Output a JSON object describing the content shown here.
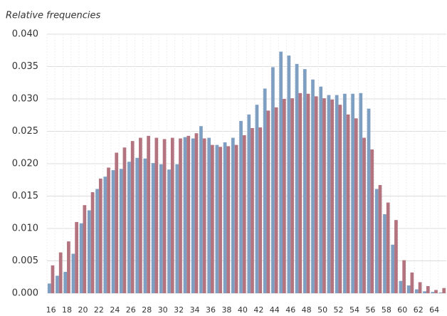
{
  "chart_data": {
    "type": "bar",
    "y_label": "Relative frequencies",
    "categories": [
      "16",
      null,
      "18",
      null,
      "20",
      null,
      "22",
      null,
      "24",
      null,
      "26",
      null,
      "28",
      null,
      "30",
      null,
      "32",
      null,
      "34",
      null,
      "36",
      null,
      "38",
      null,
      "40",
      null,
      "42",
      null,
      "44",
      null,
      "46",
      null,
      "48",
      null,
      "50",
      null,
      "52",
      null,
      "54",
      null,
      "56",
      null,
      "58",
      null,
      "60",
      null,
      "62",
      null,
      "64",
      null
    ],
    "series": [
      {
        "color": "#7f9fc2",
        "values": [
          0.0015,
          0.0027,
          0.0033,
          0.0061,
          0.0108,
          0.0128,
          0.0161,
          0.018,
          0.019,
          0.0192,
          0.0203,
          0.0209,
          0.0208,
          0.0201,
          0.0199,
          0.0191,
          0.0199,
          0.0241,
          0.0239,
          0.0258,
          0.024,
          0.0229,
          0.0233,
          0.024,
          0.0266,
          0.0276,
          0.0291,
          0.0316,
          0.0349,
          0.0373,
          0.0367,
          0.0354,
          0.0346,
          0.033,
          0.0319,
          0.0306,
          0.0306,
          0.0308,
          0.0308,
          0.0309,
          0.0285,
          0.0161,
          0.0122,
          0.0075,
          0.0019,
          0.0012,
          0.0006,
          0.0003,
          0.0002,
          0.0001
        ]
      },
      {
        "color": "#b3737f",
        "values": [
          0.0043,
          0.0063,
          0.008,
          0.011,
          0.0136,
          0.0156,
          0.0177,
          0.0194,
          0.0217,
          0.0225,
          0.0235,
          0.024,
          0.0243,
          0.024,
          0.0238,
          0.024,
          0.0239,
          0.0243,
          0.0247,
          0.0239,
          0.0229,
          0.0226,
          0.0227,
          0.0229,
          0.0244,
          0.0255,
          0.0256,
          0.0282,
          0.0287,
          0.03,
          0.0301,
          0.0309,
          0.0308,
          0.0304,
          0.0301,
          0.0299,
          0.0291,
          0.0276,
          0.027,
          0.024,
          0.0222,
          0.0167,
          0.014,
          0.0113,
          0.0051,
          0.0032,
          0.0017,
          0.0011,
          0.0005,
          0.0008
        ]
      }
    ],
    "ylim": [
      0,
      0.04
    ],
    "yticks": [
      {
        "value": 0,
        "label": "0.000"
      },
      {
        "value": 0.005,
        "label": "0.005"
      },
      {
        "value": 0.01,
        "label": "0.010"
      },
      {
        "value": 0.015,
        "label": "0.015"
      },
      {
        "value": 0.02,
        "label": "0.020"
      },
      {
        "value": 0.025,
        "label": "0.025"
      },
      {
        "value": 0.03,
        "label": "0.030"
      },
      {
        "value": 0.035,
        "label": "0.035"
      },
      {
        "value": 0.04,
        "label": "0.040"
      }
    ],
    "grid": true
  }
}
